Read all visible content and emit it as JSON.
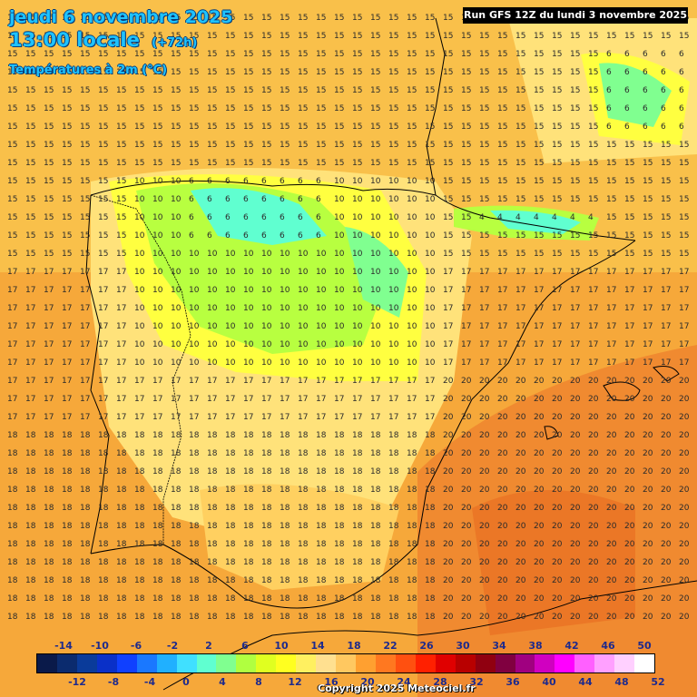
{
  "header": {
    "date_line": "jeudi 6 novembre 2025",
    "time_line": "13:00 locale",
    "offset": "(+72h)",
    "variable": "Températures à 2m (°C)",
    "run": "Run GFS 12Z du lundi 3 novembre 2025"
  },
  "legend": {
    "top_labels": [
      "-14",
      "-10",
      "-6",
      "-2",
      "2",
      "6",
      "10",
      "14",
      "18",
      "22",
      "26",
      "30",
      "34",
      "38",
      "42",
      "46",
      "50"
    ],
    "bottom_labels": [
      "-12",
      "-8",
      "-4",
      "0",
      "4",
      "8",
      "12",
      "16",
      "20",
      "24",
      "28",
      "32",
      "36",
      "40",
      "44",
      "48",
      "52"
    ],
    "colors": [
      "#0a1a4a",
      "#0b2b6e",
      "#0a3b9a",
      "#0a30c8",
      "#1040ff",
      "#1a78ff",
      "#20b0ff",
      "#40e0ff",
      "#60ffd0",
      "#80ff90",
      "#b0ff40",
      "#e0ff20",
      "#ffff20",
      "#fff060",
      "#ffe090",
      "#ffc860",
      "#ffa030",
      "#ff7820",
      "#ff5010",
      "#ff2000",
      "#e00000",
      "#b80000",
      "#900010",
      "#800040",
      "#a00080",
      "#d000c0",
      "#ff00ff",
      "#ff60ff",
      "#ffa0ff",
      "#ffd0ff",
      "#ffffff"
    ]
  },
  "copyright": "Copyright 2025 Meteociel.fr",
  "colors": {
    "warm": "#f6b23a",
    "mild": "#ffe27a",
    "cool": "#ffff40",
    "cold": "#b8ff40",
    "coldest": "#40ffb0",
    "hot": "#f08a30"
  }
}
